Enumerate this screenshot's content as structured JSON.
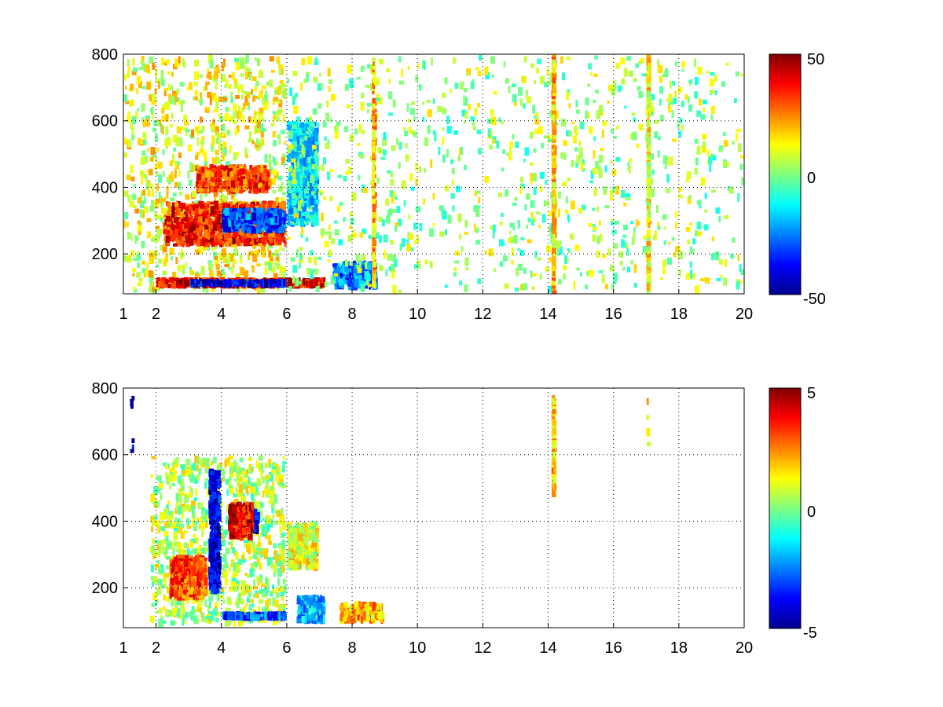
{
  "chart_data": [
    {
      "type": "heatmap",
      "title": "",
      "xlabel": "",
      "ylabel": "",
      "xlim": [
        1,
        20
      ],
      "ylim": [
        80,
        800
      ],
      "xticks": [
        1,
        2,
        4,
        6,
        8,
        10,
        12,
        14,
        16,
        18,
        20
      ],
      "xtick_labels": [
        "1",
        "2",
        "4",
        "6",
        "8",
        "10",
        "12",
        "14",
        "16",
        "18",
        "20"
      ],
      "yticks": [
        200,
        400,
        600,
        800
      ],
      "ytick_labels": [
        "200",
        "400",
        "600",
        "800"
      ],
      "grid": true,
      "grid_style": "dotted",
      "colormap": "jet",
      "clim": [
        -50,
        50
      ],
      "colorbar_ticks": [
        50,
        0,
        -50
      ],
      "colorbar_labels": [
        "50",
        "0",
        "-50"
      ],
      "features": [
        {
          "x": [
            1.0,
            6.0
          ],
          "y": [
            80,
            800
          ],
          "value": 10,
          "kind": "dense noise band"
        },
        {
          "x": [
            2.0,
            7.2
          ],
          "y": [
            95,
            130
          ],
          "value": 40,
          "kind": "low ridge (red)"
        },
        {
          "x": [
            3.0,
            6.0
          ],
          "y": [
            100,
            125
          ],
          "value": -40,
          "kind": "low ridge (blue)"
        },
        {
          "x": [
            2.2,
            6.0
          ],
          "y": [
            220,
            360
          ],
          "value": 35,
          "kind": "rising ridge (red)"
        },
        {
          "x": [
            4.0,
            6.0
          ],
          "y": [
            260,
            340
          ],
          "value": -30,
          "kind": "rising ridge (blue)"
        },
        {
          "x": [
            3.2,
            5.5
          ],
          "y": [
            380,
            470
          ],
          "value": 30,
          "kind": "upper ridge"
        },
        {
          "x": [
            6.0,
            7.0
          ],
          "y": [
            280,
            600
          ],
          "value": -15,
          "kind": "cyan patch"
        },
        {
          "x": [
            7.4,
            8.8
          ],
          "y": [
            90,
            180
          ],
          "value": -25,
          "kind": "low patch"
        },
        {
          "x": [
            6.0,
            20.0
          ],
          "y": [
            80,
            800
          ],
          "value": 3,
          "kind": "sparse speckle"
        },
        {
          "x": [
            14.1,
            14.25
          ],
          "y": [
            80,
            800
          ],
          "value": 18,
          "kind": "vertical stripe"
        },
        {
          "x": [
            17.0,
            17.15
          ],
          "y": [
            80,
            800
          ],
          "value": 12,
          "kind": "vertical stripe"
        },
        {
          "x": [
            8.6,
            8.7
          ],
          "y": [
            80,
            800
          ],
          "value": 20,
          "kind": "vertical stripe"
        }
      ]
    },
    {
      "type": "heatmap",
      "title": "",
      "xlabel": "",
      "ylabel": "",
      "xlim": [
        1,
        20
      ],
      "ylim": [
        80,
        800
      ],
      "xticks": [
        1,
        2,
        4,
        6,
        8,
        10,
        12,
        14,
        16,
        18,
        20
      ],
      "xtick_labels": [
        "1",
        "2",
        "4",
        "6",
        "8",
        "10",
        "12",
        "14",
        "16",
        "18",
        "20"
      ],
      "yticks": [
        200,
        400,
        600,
        800
      ],
      "ytick_labels": [
        "200",
        "400",
        "600",
        "800"
      ],
      "grid": true,
      "grid_style": "dotted",
      "colormap": "jet",
      "clim": [
        -5,
        5
      ],
      "colorbar_ticks": [
        5,
        0,
        -5
      ],
      "colorbar_labels": [
        "5",
        "0",
        "-5"
      ],
      "features": [
        {
          "x": [
            1.8,
            6.0
          ],
          "y": [
            80,
            600
          ],
          "value": 0.5,
          "kind": "central blob"
        },
        {
          "x": [
            2.4,
            3.6
          ],
          "y": [
            160,
            300
          ],
          "value": 3,
          "kind": "red cluster"
        },
        {
          "x": [
            3.6,
            4.0
          ],
          "y": [
            180,
            560
          ],
          "value": -4,
          "kind": "blue cluster"
        },
        {
          "x": [
            4.7,
            5.2
          ],
          "y": [
            360,
            440
          ],
          "value": -4.5,
          "kind": "blue cluster"
        },
        {
          "x": [
            4.2,
            5.0
          ],
          "y": [
            340,
            460
          ],
          "value": 4,
          "kind": "red cluster"
        },
        {
          "x": [
            4.0,
            6.0
          ],
          "y": [
            100,
            130
          ],
          "value": -3,
          "kind": "low band"
        },
        {
          "x": [
            6.0,
            7.0
          ],
          "y": [
            250,
            400
          ],
          "value": 1,
          "kind": "small patch"
        },
        {
          "x": [
            6.3,
            7.2
          ],
          "y": [
            90,
            180
          ],
          "value": -2,
          "kind": "low patch"
        },
        {
          "x": [
            7.6,
            9.0
          ],
          "y": [
            90,
            160
          ],
          "value": 2,
          "kind": "low patch"
        },
        {
          "x": [
            14.1,
            14.25
          ],
          "y": [
            470,
            780
          ],
          "value": 1.5,
          "kind": "vertical stripe"
        },
        {
          "x": [
            17.0,
            17.1
          ],
          "y": [
            570,
            780
          ],
          "value": 1,
          "kind": "faint marks"
        },
        {
          "x": [
            1.2,
            1.35
          ],
          "y": [
            550,
            780
          ],
          "value": -4,
          "kind": "thin marks"
        }
      ]
    }
  ]
}
